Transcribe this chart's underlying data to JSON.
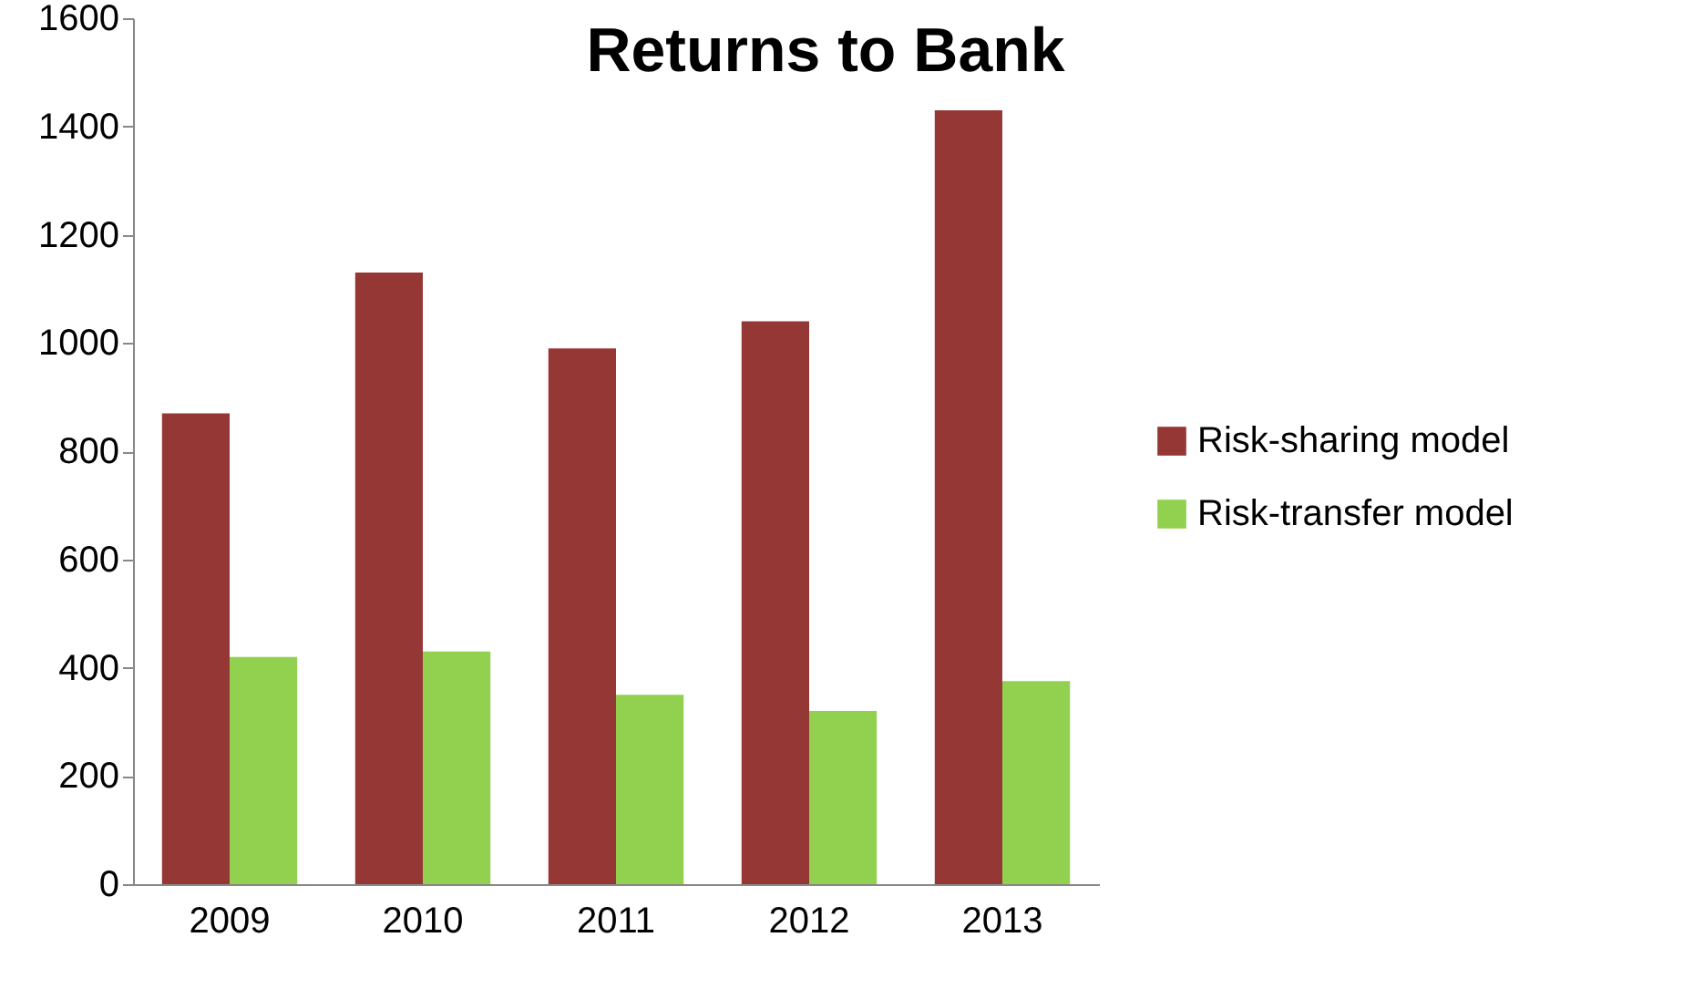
{
  "chart_data": {
    "type": "bar",
    "title": "Returns to Bank",
    "categories": [
      "2009",
      "2010",
      "2011",
      "2012",
      "2013"
    ],
    "series": [
      {
        "name": "Risk-sharing model",
        "color": "#953735",
        "values": [
          870,
          1130,
          990,
          1040,
          1430
        ]
      },
      {
        "name": "Risk-transfer model",
        "color": "#92d050",
        "values": [
          420,
          430,
          350,
          320,
          375
        ]
      }
    ],
    "ylim": [
      0,
      1600
    ],
    "yticks": [
      0,
      200,
      400,
      600,
      800,
      1000,
      1200,
      1400,
      1600
    ],
    "grid": false,
    "legend": "right"
  }
}
